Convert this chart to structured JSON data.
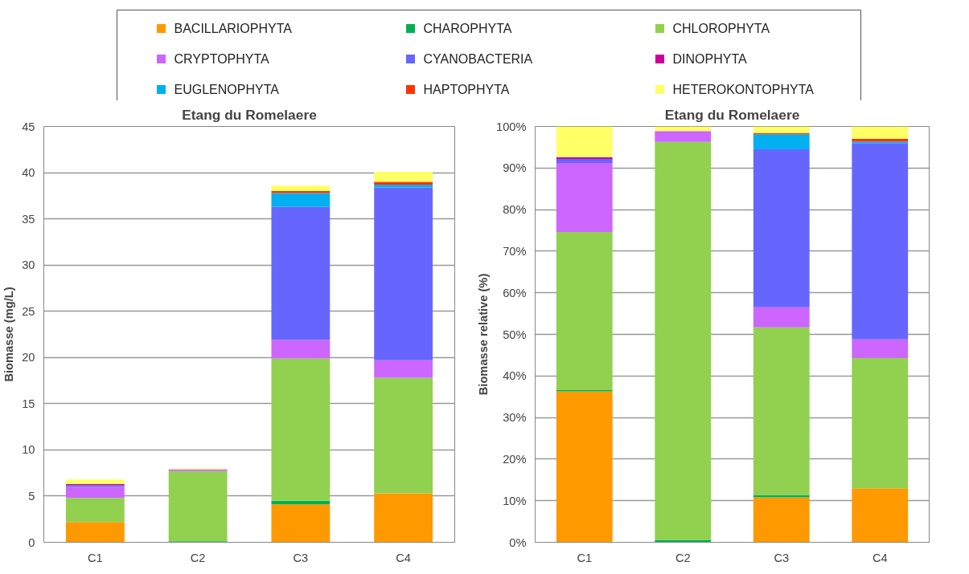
{
  "chart_data": [
    {
      "type": "bar",
      "stacked": true,
      "title": "Etang du Romelaere",
      "ylabel": "Biomasse (mg/L)",
      "categories": [
        "C1",
        "C2",
        "C3",
        "C4"
      ],
      "ylim": [
        0,
        45
      ],
      "yticks": [
        0,
        5,
        10,
        15,
        20,
        25,
        30,
        35,
        40,
        45
      ],
      "grid": "y",
      "legend": "top",
      "series": [
        {
          "name": "BACILLARIOPHYTA",
          "color": "#ff9900",
          "values": [
            2.2,
            0,
            4.1,
            5.3
          ]
        },
        {
          "name": "CHAROPHYTA",
          "color": "#00b050",
          "values": [
            0,
            0.1,
            0.4,
            0
          ]
        },
        {
          "name": "CHLOROPHYTA",
          "color": "#92d050",
          "values": [
            2.6,
            7.6,
            15.4,
            12.5
          ]
        },
        {
          "name": "CRYPTOPHYTA",
          "color": "#cc66ff",
          "values": [
            1.2,
            0.2,
            2.0,
            1.9
          ]
        },
        {
          "name": "CYANOBACTERIA",
          "color": "#6666ff",
          "values": [
            0.2,
            0,
            14.4,
            18.7
          ]
        },
        {
          "name": "DINOPHYTA",
          "color": "#cc0099",
          "values": [
            0.1,
            0,
            0,
            0
          ]
        },
        {
          "name": "EUGLENOPHYTA",
          "color": "#00b0f0",
          "values": [
            0,
            0,
            1.5,
            0.3
          ]
        },
        {
          "name": "HAPTOPHYTA",
          "color": "#ff3300",
          "values": [
            0,
            0,
            0.2,
            0.3
          ]
        },
        {
          "name": "HETEROKONTOPHYTA",
          "color": "#ffff66",
          "values": [
            0.5,
            0.1,
            0.6,
            1.1
          ]
        }
      ]
    },
    {
      "type": "bar",
      "stacked": true,
      "title": "Etang du Romelaere",
      "ylabel": "Biomasse relative (%)",
      "categories": [
        "C1",
        "C2",
        "C3",
        "C4"
      ],
      "ylim": [
        0,
        100
      ],
      "yticks": [
        {
          "value": 0,
          "label": "0%"
        },
        {
          "value": 10,
          "label": "10%"
        },
        {
          "value": 20,
          "label": "20%"
        },
        {
          "value": 30,
          "label": "30%"
        },
        {
          "value": 40,
          "label": "40%"
        },
        {
          "value": 50,
          "label": "50%"
        },
        {
          "value": 60,
          "label": "60%"
        },
        {
          "value": 70,
          "label": "70%"
        },
        {
          "value": 80,
          "label": "80%"
        },
        {
          "value": 90,
          "label": "90%"
        },
        {
          "value": 100,
          "label": "100%"
        }
      ],
      "grid": "y",
      "series": [
        {
          "color": "#ff9900",
          "values": [
            36.3,
            0,
            10.8,
            13.0
          ]
        },
        {
          "color": "#00b050",
          "values": [
            0.3,
            0.6,
            0.6,
            0
          ]
        },
        {
          "color": "#92d050",
          "values": [
            38.0,
            95.7,
            40.3,
            31.3
          ]
        },
        {
          "color": "#cc66ff",
          "values": [
            16.6,
            2.6,
            4.8,
            4.5
          ]
        },
        {
          "color": "#6666ff",
          "values": [
            1.0,
            0,
            38.0,
            47.2
          ]
        },
        {
          "color": "#cc0099",
          "values": [
            0.4,
            0,
            0,
            0
          ]
        },
        {
          "color": "#00b0f0",
          "values": [
            0,
            0,
            3.6,
            0.4
          ]
        },
        {
          "color": "#ff3300",
          "values": [
            0,
            0,
            0.3,
            0.6
          ]
        },
        {
          "color": "#ffff66",
          "values": [
            7.4,
            1.1,
            1.6,
            3.0
          ]
        }
      ]
    }
  ]
}
